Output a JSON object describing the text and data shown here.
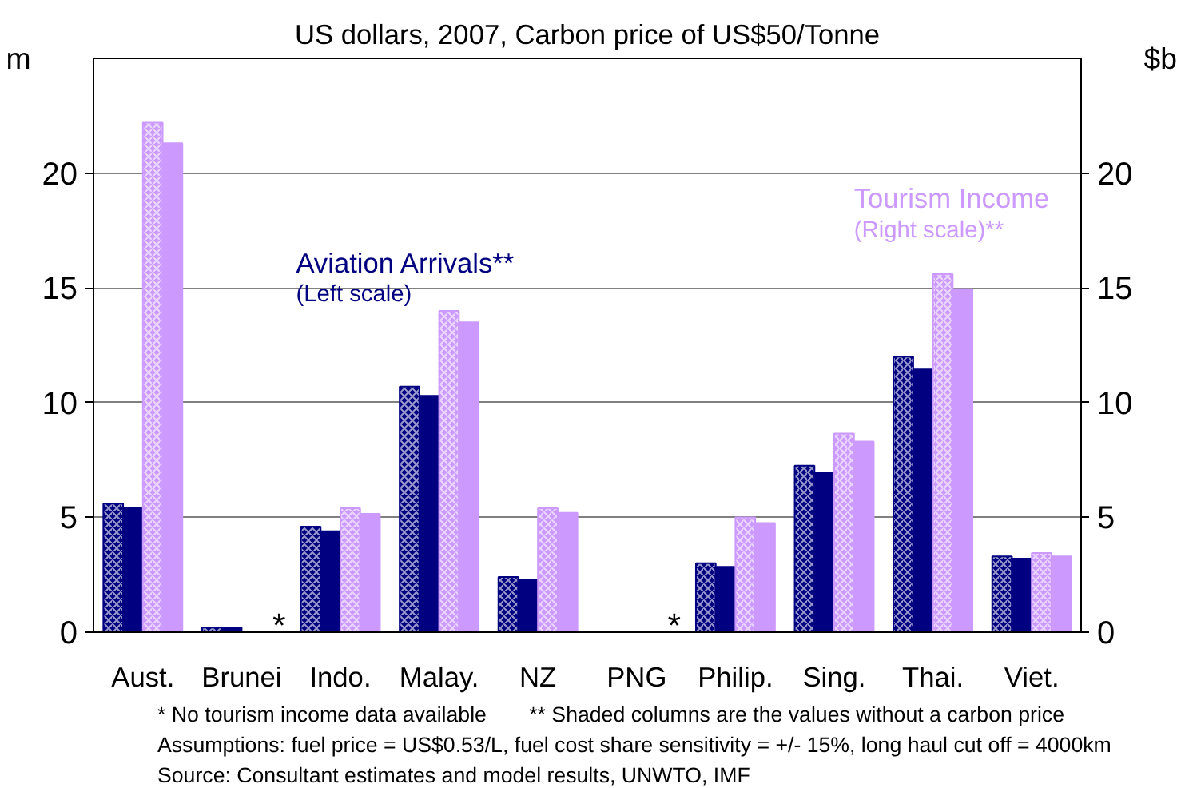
{
  "chart_data": {
    "type": "bar",
    "title": "US dollars, 2007, Carbon price of US$50/Tonne",
    "ylabel": "m",
    "y2label": "$b",
    "categories": [
      "Aust.",
      "Brunei",
      "Indo.",
      "Malay.",
      "NZ",
      "PNG",
      "Philip.",
      "Sing.",
      "Thai.",
      "Viet."
    ],
    "series": [
      {
        "name": "Aviation Arrivals**\n(Left scale)",
        "color": "#000080",
        "values": [
          5.6,
          0.2,
          4.6,
          10.7,
          2.4,
          null,
          3.0,
          7.25,
          12.0,
          3.3
        ]
      },
      {
        "color": "#000080",
        "values": [
          5.4,
          0.2,
          4.4,
          10.3,
          2.3,
          null,
          2.85,
          6.95,
          11.45,
          3.2
        ]
      },
      {
        "name": "Tourism Income\n(Right scale)**",
        "color": "#cc99ff",
        "axis": "y2",
        "values": [
          22.2,
          null,
          5.4,
          14.0,
          5.4,
          null,
          5.0,
          8.65,
          15.6,
          3.45
        ]
      },
      {
        "color": "#cc99ff",
        "axis": "y2",
        "values": [
          21.3,
          null,
          5.15,
          13.5,
          5.2,
          null,
          4.75,
          8.3,
          14.95,
          3.3
        ]
      }
    ],
    "ylim": [
      0,
      25
    ],
    "yticks": [
      0,
      5,
      10,
      15,
      20
    ],
    "y2lim": [
      0,
      25
    ],
    "y2ticks": [
      0,
      5,
      10,
      15,
      20
    ],
    "grid": "y",
    "annotations": [
      "*",
      "*",
      "* No tourism income data available",
      "** Shaded columns are the values without a carbon price",
      "Assumptions: fuel price = US$0.53/L, fuel cost share sensitivity = +/- 15%, long haul cut off = 4000km",
      "Source: Consultant estimates and model results, UNWTO, IMF"
    ]
  }
}
